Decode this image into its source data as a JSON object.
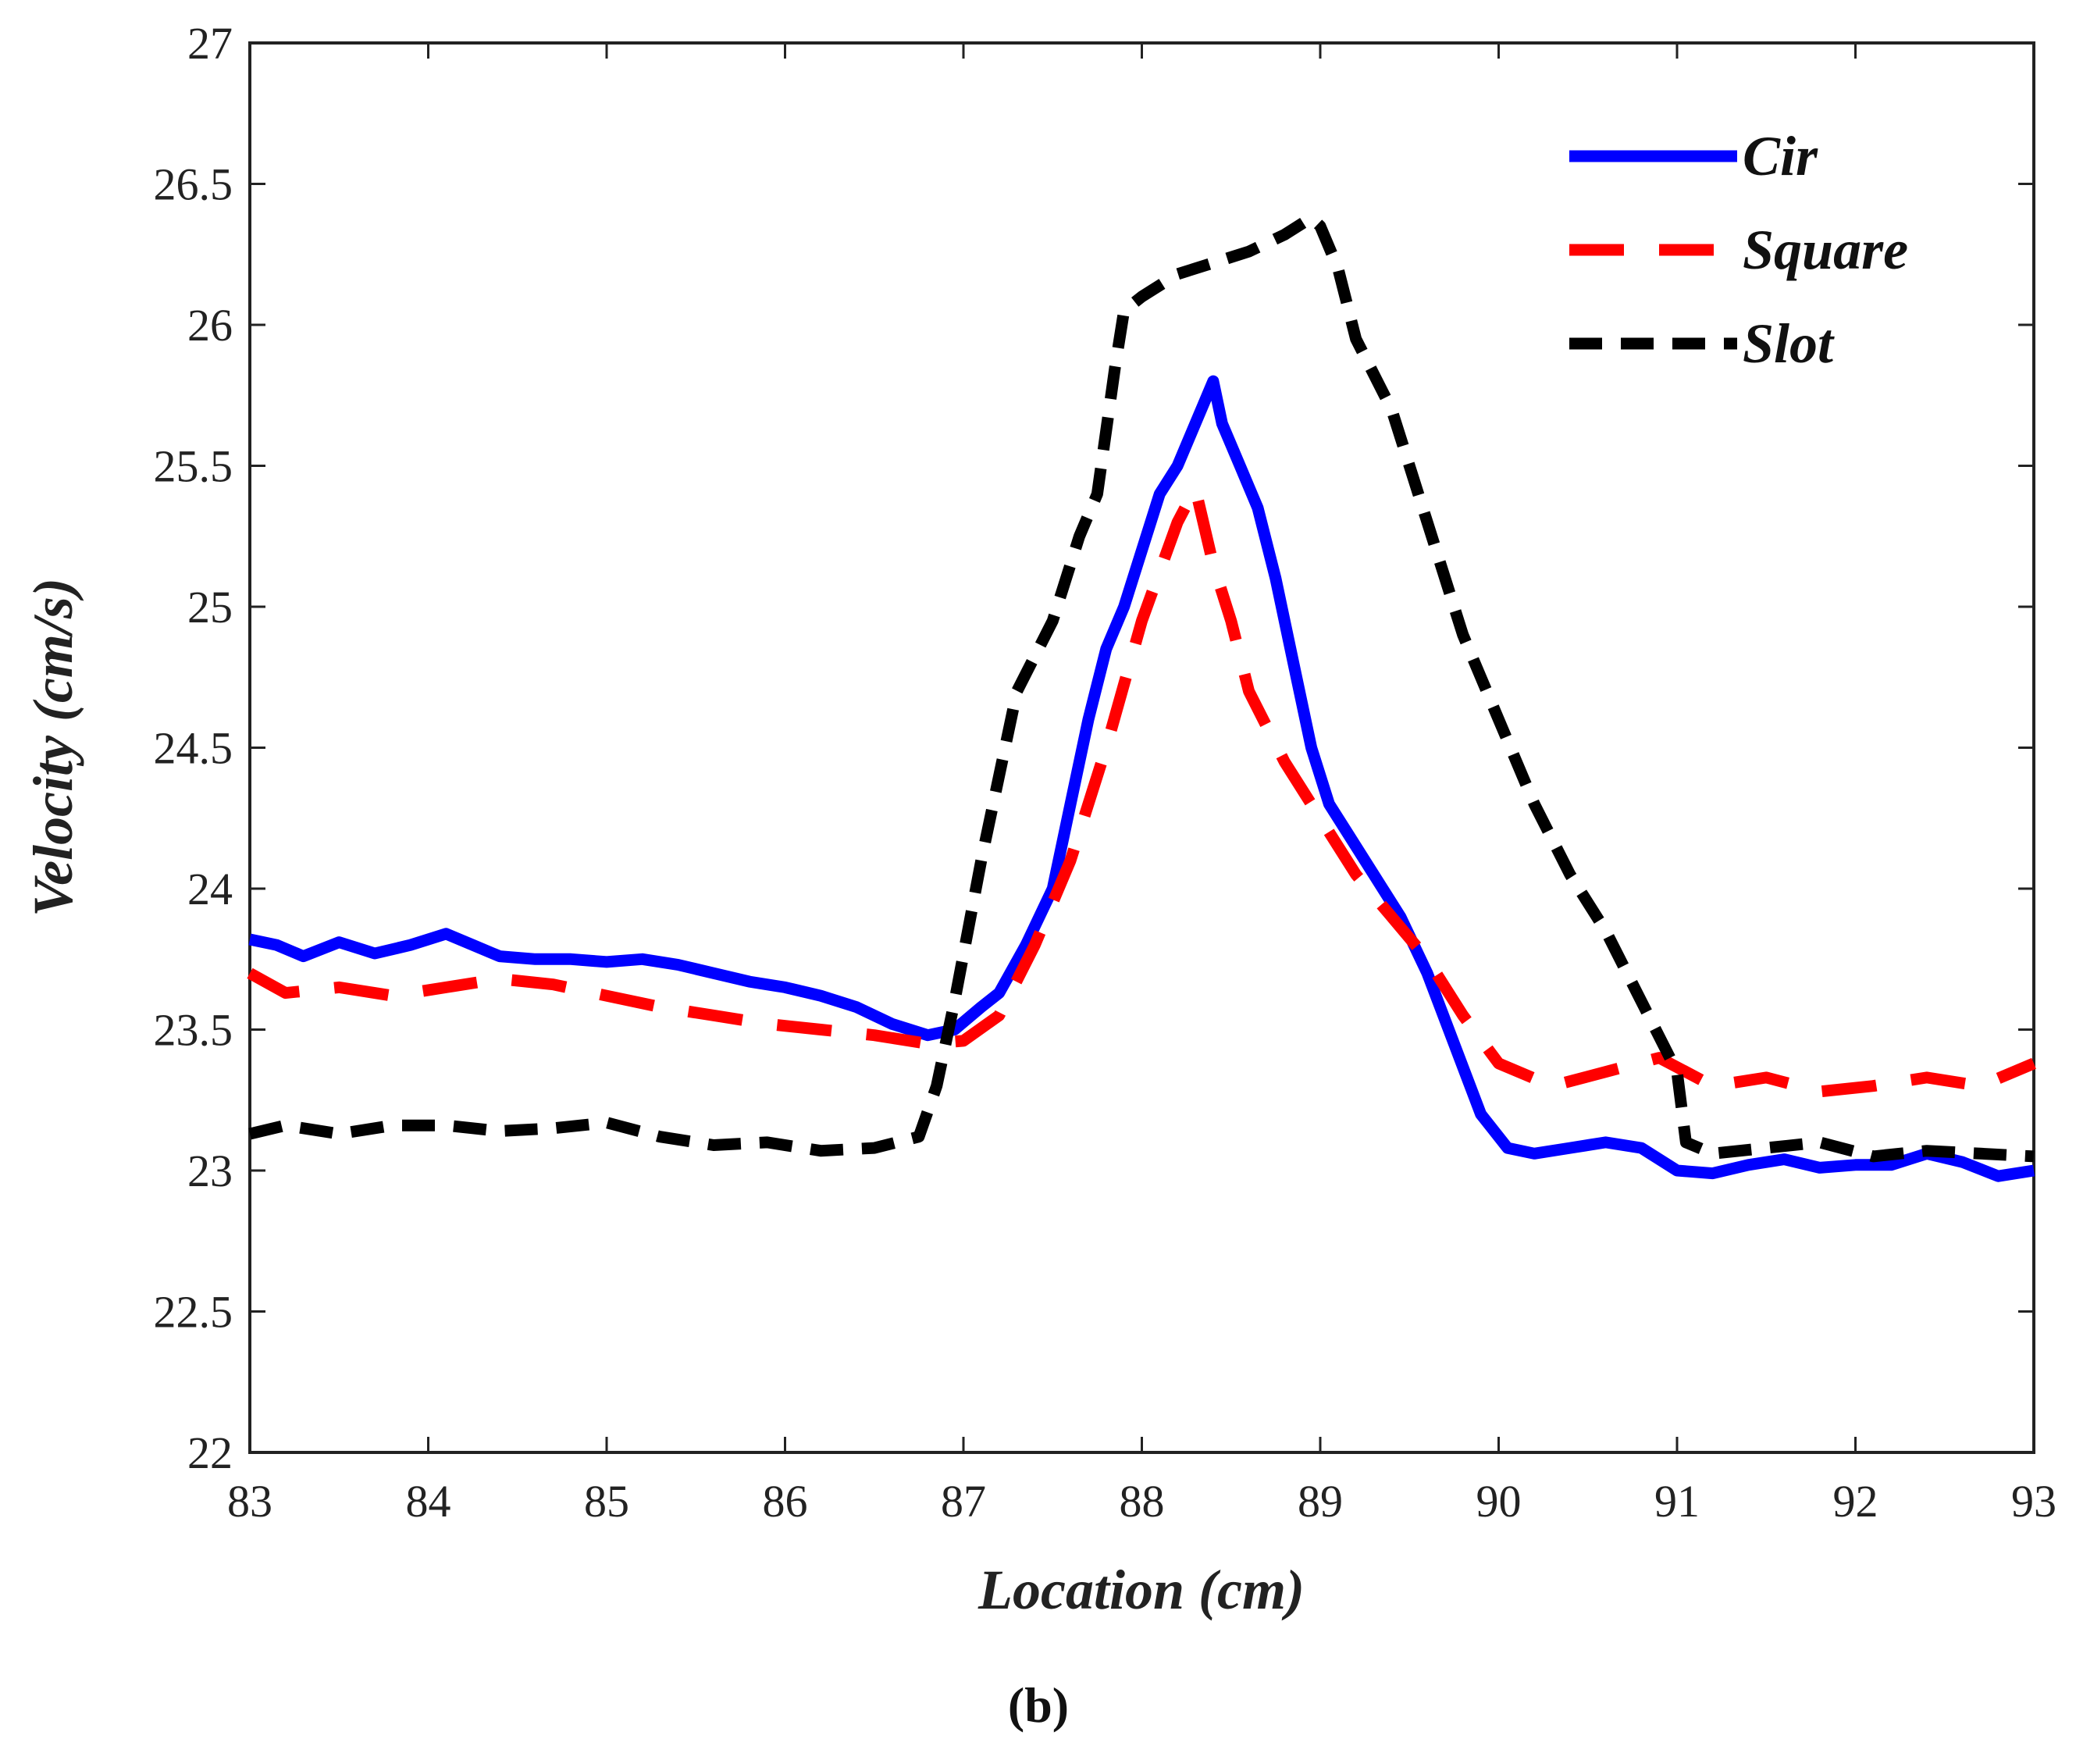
{
  "chart_data": {
    "type": "line",
    "title": "",
    "xlabel": "Location (cm)",
    "ylabel": "Velocity (cm/s)",
    "xlim": [
      83,
      93
    ],
    "ylim": [
      22,
      27
    ],
    "xticks": [
      83,
      84,
      85,
      86,
      87,
      88,
      89,
      90,
      91,
      92,
      93
    ],
    "xtick_labels": [
      "83",
      "84",
      "85",
      "86",
      "87",
      "88",
      "89",
      "90",
      "91",
      "92",
      "93"
    ],
    "yticks": [
      22,
      22.5,
      23,
      23.5,
      24,
      24.5,
      25,
      25.5,
      26,
      26.5,
      27
    ],
    "ytick_labels": [
      "22",
      "22.5",
      "23",
      "23.5",
      "24",
      "24.5",
      "25",
      "25.5",
      "26",
      "26.5",
      "27"
    ],
    "grid": false,
    "legend_position": "top-right",
    "caption": "(b)",
    "series": [
      {
        "name": "Cir",
        "color": "#0000ff",
        "style": "solid",
        "x": [
          83.0,
          83.15,
          83.3,
          83.5,
          83.7,
          83.9,
          84.1,
          84.25,
          84.4,
          84.6,
          84.8,
          85.0,
          85.2,
          85.4,
          85.6,
          85.8,
          86.0,
          86.2,
          86.4,
          86.6,
          86.8,
          86.95,
          87.1,
          87.2,
          87.35,
          87.5,
          87.6,
          87.7,
          87.8,
          87.9,
          88.0,
          88.1,
          88.2,
          88.3,
          88.4,
          88.45,
          88.55,
          88.65,
          88.75,
          88.85,
          88.95,
          89.05,
          89.15,
          89.3,
          89.45,
          89.6,
          89.75,
          89.9,
          90.05,
          90.2,
          90.4,
          90.6,
          90.8,
          91.0,
          91.2,
          91.4,
          91.6,
          91.8,
          92.0,
          92.2,
          92.4,
          92.6,
          92.8,
          93.0
        ],
        "y": [
          23.82,
          23.8,
          23.76,
          23.81,
          23.77,
          23.8,
          23.84,
          23.8,
          23.76,
          23.75,
          23.75,
          23.74,
          23.75,
          23.73,
          23.7,
          23.67,
          23.65,
          23.62,
          23.58,
          23.52,
          23.48,
          23.5,
          23.58,
          23.63,
          23.8,
          24.0,
          24.3,
          24.6,
          24.85,
          25.0,
          25.2,
          25.4,
          25.5,
          25.65,
          25.8,
          25.65,
          25.5,
          25.35,
          25.1,
          24.8,
          24.5,
          24.3,
          24.2,
          24.05,
          23.9,
          23.7,
          23.45,
          23.2,
          23.08,
          23.06,
          23.08,
          23.1,
          23.08,
          23.0,
          22.99,
          23.02,
          23.04,
          23.01,
          23.02,
          23.02,
          23.06,
          23.03,
          22.98,
          23.0
        ]
      },
      {
        "name": "Square",
        "color": "#ff0000",
        "style": "dashed",
        "x": [
          83.0,
          83.2,
          83.5,
          83.8,
          84.1,
          84.4,
          84.7,
          85.0,
          85.3,
          85.6,
          85.9,
          86.2,
          86.5,
          86.8,
          87.0,
          87.2,
          87.4,
          87.6,
          87.8,
          88.0,
          88.2,
          88.3,
          88.4,
          88.5,
          88.6,
          88.8,
          89.0,
          89.2,
          89.4,
          89.6,
          89.8,
          90.0,
          90.3,
          90.6,
          90.9,
          91.2,
          91.5,
          91.8,
          92.1,
          92.4,
          92.7,
          93.0
        ],
        "y": [
          23.7,
          23.63,
          23.65,
          23.62,
          23.65,
          23.68,
          23.66,
          23.62,
          23.58,
          23.55,
          23.52,
          23.5,
          23.48,
          23.45,
          23.46,
          23.55,
          23.8,
          24.1,
          24.5,
          24.95,
          25.3,
          25.42,
          25.15,
          24.95,
          24.7,
          24.45,
          24.25,
          24.05,
          23.9,
          23.75,
          23.55,
          23.38,
          23.3,
          23.35,
          23.4,
          23.3,
          23.33,
          23.28,
          23.3,
          23.33,
          23.3,
          23.38
        ]
      },
      {
        "name": "Slot",
        "color": "#000000",
        "style": "dashed",
        "x": [
          83.0,
          83.2,
          83.5,
          83.8,
          84.1,
          84.4,
          84.7,
          85.0,
          85.3,
          85.6,
          85.9,
          86.2,
          86.5,
          86.75,
          86.85,
          86.95,
          87.1,
          87.3,
          87.5,
          87.65,
          87.75,
          87.85,
          87.9,
          88.0,
          88.2,
          88.4,
          88.6,
          88.8,
          88.95,
          89.0,
          89.1,
          89.2,
          89.4,
          89.6,
          89.8,
          90.0,
          90.2,
          90.4,
          90.6,
          90.8,
          91.0,
          91.05,
          91.2,
          91.5,
          91.8,
          92.1,
          92.4,
          92.7,
          93.0
        ],
        "y": [
          23.13,
          23.16,
          23.13,
          23.16,
          23.16,
          23.14,
          23.15,
          23.17,
          23.12,
          23.09,
          23.1,
          23.07,
          23.08,
          23.12,
          23.3,
          23.6,
          24.1,
          24.7,
          24.95,
          25.25,
          25.4,
          25.85,
          26.05,
          26.1,
          26.18,
          26.22,
          26.26,
          26.32,
          26.38,
          26.35,
          26.2,
          25.95,
          25.7,
          25.3,
          24.9,
          24.6,
          24.3,
          24.05,
          23.85,
          23.6,
          23.35,
          23.1,
          23.06,
          23.08,
          23.1,
          23.05,
          23.07,
          23.06,
          23.05
        ]
      }
    ]
  }
}
